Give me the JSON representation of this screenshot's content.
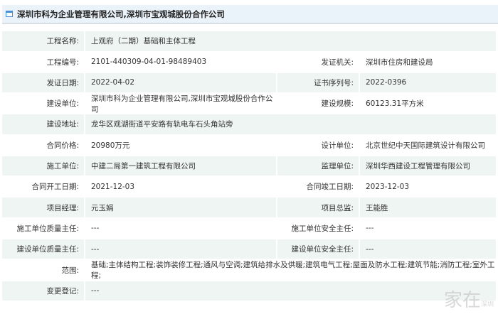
{
  "header": {
    "title": "深圳市科为企业管理有限公司,深圳市宝观城股份合作公司",
    "icon": "window-icon"
  },
  "rows": [
    {
      "label": "工程名称:",
      "value": "上观府（二期）基础和主体工程"
    },
    {
      "label": "工程编号:",
      "value": "2101-440309-04-01-98489403",
      "label2": "发证机关:",
      "value2": "深圳市住房和建设局"
    },
    {
      "label": "发证日期:",
      "value": "2022-04-02",
      "label2": "证书序列号:",
      "value2": "2022-0396"
    },
    {
      "label": "建设单位:",
      "value": "深圳市科为企业管理有限公司,深圳市宝观城股份合作公司",
      "label2": "建设规模:",
      "value2": "60123.31平方米"
    },
    {
      "label": "建设地址:",
      "value": "龙华区观湖街道平安路有轨电车石头角站旁"
    },
    {
      "label": "合同价格:",
      "value": "20980万元",
      "label2": "设计单位:",
      "value2": "北京世纪中天国际建筑设计有限公司"
    },
    {
      "label": "施工单位:",
      "value": "中建二局第一建筑工程有限公司",
      "label2": "监理单位:",
      "value2": "深圳华西建设工程管理有限公司"
    },
    {
      "label": "合同开工日期:",
      "value": "2021-12-03",
      "label2": "合同竣工日期:",
      "value2": "2023-12-03"
    },
    {
      "label": "项目经理:",
      "value": "元玉娟",
      "label2": "项目总监:",
      "value2": "王能胜"
    },
    {
      "label": "施工单位质量主任:",
      "value": "---",
      "label2": "施工单位安全主任:",
      "value2": "---"
    },
    {
      "label": "建设单位质量主任:",
      "value": "---",
      "label2": "建设单位安全主任:",
      "value2": "---"
    },
    {
      "label": "范围:",
      "value": "基础;主体结构工程;装饰装修工程;通风与空调;建筑给排水及供暖;建筑电气工程;屋面及防水工程;建筑节能;消防工程;室外工程;"
    },
    {
      "label": "变更登记:",
      "value": "---"
    }
  ],
  "watermark": {
    "text": "家在",
    "sub": "深圳"
  }
}
